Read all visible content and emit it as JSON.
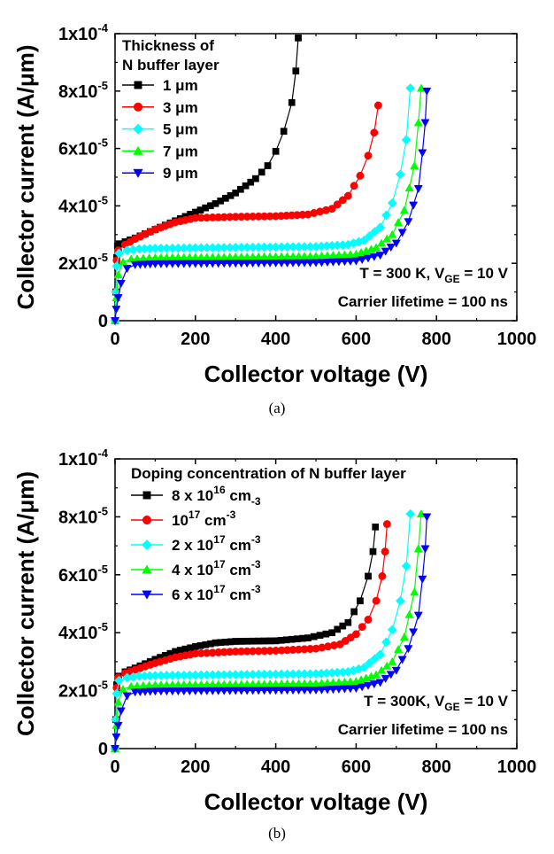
{
  "chart_data": [
    {
      "type": "line",
      "panel_label": "(a)",
      "xlabel": "Collector voltage (V)",
      "ylabel": "Collector current (A/μm)",
      "xlim": [
        0,
        1000
      ],
      "ylim": [
        0,
        0.0001
      ],
      "x_ticks": [
        "0",
        "200",
        "400",
        "600",
        "800",
        "1000"
      ],
      "y_ticks": [
        {
          "mant": "0",
          "exp": ""
        },
        {
          "mant": "2x10",
          "exp": "-5"
        },
        {
          "mant": "4x10",
          "exp": "-5"
        },
        {
          "mant": "6x10",
          "exp": "-5"
        },
        {
          "mant": "8x10",
          "exp": "-5"
        },
        {
          "mant": "1x10",
          "exp": "-4"
        }
      ],
      "legend_title": [
        "Thickness of",
        "N buffer layer"
      ],
      "legend_position": "top-left",
      "annotations": [
        [
          {
            "t": "T = 300 K, V"
          },
          {
            "t": "GE",
            "sub": true
          },
          {
            "t": " = 10 V"
          }
        ],
        [
          {
            "t": "Carrier lifetime = 100 ns"
          }
        ]
      ],
      "series": [
        {
          "name": [
            {
              "t": "1 μm"
            }
          ],
          "color": "#000000",
          "marker": "square",
          "points": [
            [
              0,
              0
            ],
            [
              2,
              1e-05
            ],
            [
              4,
              2.2e-05
            ],
            [
              6,
              2.6e-05
            ],
            [
              10,
              2.68e-05
            ],
            [
              25,
              2.75e-05
            ],
            [
              50,
              2.88e-05
            ],
            [
              100,
              3.18e-05
            ],
            [
              150,
              3.48e-05
            ],
            [
              200,
              3.78e-05
            ],
            [
              250,
              4.08e-05
            ],
            [
              300,
              4.45e-05
            ],
            [
              350,
              4.95e-05
            ],
            [
              380,
              5.4e-05
            ],
            [
              400,
              5.9e-05
            ],
            [
              420,
              6.6e-05
            ],
            [
              440,
              7.6e-05
            ],
            [
              450,
              8.7e-05
            ],
            [
              456,
              9.85e-05
            ]
          ]
        },
        {
          "name": [
            {
              "t": "3 μm"
            }
          ],
          "color": "#ff0000",
          "marker": "circle",
          "points": [
            [
              0,
              0
            ],
            [
              2,
              1e-05
            ],
            [
              4,
              2.1e-05
            ],
            [
              8,
              2.45e-05
            ],
            [
              25,
              2.65e-05
            ],
            [
              50,
              2.85e-05
            ],
            [
              100,
              3.18e-05
            ],
            [
              150,
              3.43e-05
            ],
            [
              200,
              3.58e-05
            ],
            [
              300,
              3.62e-05
            ],
            [
              400,
              3.64e-05
            ],
            [
              480,
              3.7e-05
            ],
            [
              540,
              3.9e-05
            ],
            [
              580,
              4.35e-05
            ],
            [
              610,
              5.05e-05
            ],
            [
              630,
              5.75e-05
            ],
            [
              645,
              6.55e-05
            ],
            [
              655,
              7.5e-05
            ]
          ]
        },
        {
          "name": [
            {
              "t": "5 μm"
            }
          ],
          "color": "#00ffff",
          "marker": "diamond",
          "points": [
            [
              0,
              0
            ],
            [
              2,
              1e-05
            ],
            [
              4,
              1.9e-05
            ],
            [
              10,
              2.35e-05
            ],
            [
              30,
              2.45e-05
            ],
            [
              60,
              2.5e-05
            ],
            [
              100,
              2.52e-05
            ],
            [
              300,
              2.55e-05
            ],
            [
              500,
              2.58e-05
            ],
            [
              580,
              2.65e-05
            ],
            [
              620,
              2.8e-05
            ],
            [
              660,
              3.25e-05
            ],
            [
              690,
              4.1e-05
            ],
            [
              710,
              5.1e-05
            ],
            [
              725,
              6.3e-05
            ],
            [
              735,
              8.1e-05
            ]
          ]
        },
        {
          "name": [
            {
              "t": "7 μm"
            }
          ],
          "color": "#00ff00",
          "marker": "triangle-up",
          "points": [
            [
              0,
              0
            ],
            [
              3,
              8e-06
            ],
            [
              8,
              1.6e-05
            ],
            [
              20,
              2.05e-05
            ],
            [
              40,
              2.15e-05
            ],
            [
              100,
              2.2e-05
            ],
            [
              300,
              2.22e-05
            ],
            [
              500,
              2.25e-05
            ],
            [
              600,
              2.32e-05
            ],
            [
              650,
              2.55e-05
            ],
            [
              690,
              3e-05
            ],
            [
              720,
              3.85e-05
            ],
            [
              745,
              5.4e-05
            ],
            [
              755,
              6.9e-05
            ],
            [
              762,
              8.1e-05
            ]
          ]
        },
        {
          "name": [
            {
              "t": "9 μm"
            }
          ],
          "color": "#0000ff",
          "marker": "triangle-down",
          "points": [
            [
              0,
              0
            ],
            [
              3,
              4e-06
            ],
            [
              8,
              8e-06
            ],
            [
              15,
              1.3e-05
            ],
            [
              30,
              1.82e-05
            ],
            [
              50,
              1.95e-05
            ],
            [
              100,
              1.98e-05
            ],
            [
              300,
              2e-05
            ],
            [
              500,
              2.02e-05
            ],
            [
              600,
              2.08e-05
            ],
            [
              660,
              2.28e-05
            ],
            [
              700,
              2.7e-05
            ],
            [
              730,
              3.45e-05
            ],
            [
              755,
              4.6e-05
            ],
            [
              765,
              5.85e-05
            ],
            [
              772,
              6.9e-05
            ],
            [
              776,
              8e-05
            ]
          ]
        }
      ]
    },
    {
      "type": "line",
      "panel_label": "(b)",
      "xlabel": "Collector voltage (V)",
      "ylabel": "Collector current (A/μm)",
      "xlim": [
        0,
        1000
      ],
      "ylim": [
        0,
        0.0001
      ],
      "x_ticks": [
        "0",
        "200",
        "400",
        "600",
        "800",
        "1000"
      ],
      "y_ticks": [
        {
          "mant": "0",
          "exp": ""
        },
        {
          "mant": "2x10",
          "exp": "-5"
        },
        {
          "mant": "4x10",
          "exp": "-5"
        },
        {
          "mant": "6x10",
          "exp": "-5"
        },
        {
          "mant": "8x10",
          "exp": "-5"
        },
        {
          "mant": "1x10",
          "exp": "-4"
        }
      ],
      "legend_title": [
        "Doping concentration of N buffer layer"
      ],
      "legend_position": "top-left",
      "annotations": [
        [
          {
            "t": "T = 300K, V"
          },
          {
            "t": "GE",
            "sub": true
          },
          {
            "t": " = 10 V"
          }
        ],
        [
          {
            "t": "Carrier lifetime = 100 ns"
          }
        ]
      ],
      "series": [
        {
          "name": [
            {
              "t": "8 x 10"
            },
            {
              "t": "16",
              "sup": true
            },
            {
              "t": " cm"
            },
            {
              "t": "-3",
              "sub": true
            }
          ],
          "color": "#000000",
          "marker": "square",
          "points": [
            [
              0,
              0
            ],
            [
              2,
              1e-05
            ],
            [
              4,
              2.2e-05
            ],
            [
              8,
              2.5e-05
            ],
            [
              25,
              2.65e-05
            ],
            [
              50,
              2.78e-05
            ],
            [
              100,
              3.08e-05
            ],
            [
              150,
              3.35e-05
            ],
            [
              200,
              3.52e-05
            ],
            [
              250,
              3.65e-05
            ],
            [
              300,
              3.7e-05
            ],
            [
              400,
              3.72e-05
            ],
            [
              480,
              3.82e-05
            ],
            [
              540,
              4e-05
            ],
            [
              580,
              4.35e-05
            ],
            [
              610,
              5.1e-05
            ],
            [
              630,
              5.95e-05
            ],
            [
              642,
              6.8e-05
            ],
            [
              648,
              7.65e-05
            ]
          ]
        },
        {
          "name": [
            {
              "t": "10"
            },
            {
              "t": "17",
              "sup": true
            },
            {
              "t": " cm"
            },
            {
              "t": "-3",
              "sup": true
            }
          ],
          "color": "#ff0000",
          "marker": "circle",
          "points": [
            [
              0,
              0
            ],
            [
              2,
              1e-05
            ],
            [
              4,
              2.1e-05
            ],
            [
              8,
              2.45e-05
            ],
            [
              25,
              2.6e-05
            ],
            [
              50,
              2.72e-05
            ],
            [
              100,
              2.95e-05
            ],
            [
              150,
              3.15e-05
            ],
            [
              200,
              3.28e-05
            ],
            [
              300,
              3.35e-05
            ],
            [
              400,
              3.38e-05
            ],
            [
              500,
              3.45e-05
            ],
            [
              560,
              3.6e-05
            ],
            [
              600,
              3.95e-05
            ],
            [
              630,
              4.45e-05
            ],
            [
              650,
              5.1e-05
            ],
            [
              665,
              5.95e-05
            ],
            [
              672,
              6.8e-05
            ],
            [
              677,
              7.75e-05
            ]
          ]
        },
        {
          "name": [
            {
              "t": "2 x 10"
            },
            {
              "t": "17",
              "sup": true
            },
            {
              "t": " cm"
            },
            {
              "t": "-3",
              "sup": true
            }
          ],
          "color": "#00ffff",
          "marker": "diamond",
          "points": [
            [
              0,
              0
            ],
            [
              2,
              1e-05
            ],
            [
              4,
              1.9e-05
            ],
            [
              10,
              2.35e-05
            ],
            [
              30,
              2.45e-05
            ],
            [
              60,
              2.5e-05
            ],
            [
              100,
              2.52e-05
            ],
            [
              300,
              2.55e-05
            ],
            [
              500,
              2.58e-05
            ],
            [
              580,
              2.65e-05
            ],
            [
              620,
              2.8e-05
            ],
            [
              660,
              3.25e-05
            ],
            [
              690,
              4.1e-05
            ],
            [
              710,
              5.1e-05
            ],
            [
              725,
              6.3e-05
            ],
            [
              735,
              8.1e-05
            ]
          ]
        },
        {
          "name": [
            {
              "t": "4 x 10"
            },
            {
              "t": "17",
              "sup": true
            },
            {
              "t": " cm"
            },
            {
              "t": "-3",
              "sup": true
            }
          ],
          "color": "#00ff00",
          "marker": "triangle-up",
          "points": [
            [
              0,
              0
            ],
            [
              3,
              8e-06
            ],
            [
              8,
              1.6e-05
            ],
            [
              20,
              2.05e-05
            ],
            [
              40,
              2.15e-05
            ],
            [
              100,
              2.2e-05
            ],
            [
              300,
              2.22e-05
            ],
            [
              500,
              2.25e-05
            ],
            [
              600,
              2.32e-05
            ],
            [
              650,
              2.55e-05
            ],
            [
              690,
              3e-05
            ],
            [
              720,
              3.85e-05
            ],
            [
              745,
              5.4e-05
            ],
            [
              755,
              6.9e-05
            ],
            [
              762,
              8.1e-05
            ]
          ]
        },
        {
          "name": [
            {
              "t": "6 x 10"
            },
            {
              "t": "17",
              "sup": true
            },
            {
              "t": " cm"
            },
            {
              "t": "-3",
              "sup": true
            }
          ],
          "color": "#0000ff",
          "marker": "triangle-down",
          "points": [
            [
              0,
              0
            ],
            [
              3,
              4e-06
            ],
            [
              8,
              8e-06
            ],
            [
              15,
              1.3e-05
            ],
            [
              30,
              1.82e-05
            ],
            [
              50,
              1.95e-05
            ],
            [
              100,
              1.98e-05
            ],
            [
              300,
              2e-05
            ],
            [
              500,
              2.02e-05
            ],
            [
              600,
              2.08e-05
            ],
            [
              660,
              2.28e-05
            ],
            [
              700,
              2.7e-05
            ],
            [
              730,
              3.45e-05
            ],
            [
              755,
              4.6e-05
            ],
            [
              765,
              5.85e-05
            ],
            [
              772,
              6.9e-05
            ],
            [
              776,
              8e-05
            ]
          ]
        }
      ]
    }
  ]
}
